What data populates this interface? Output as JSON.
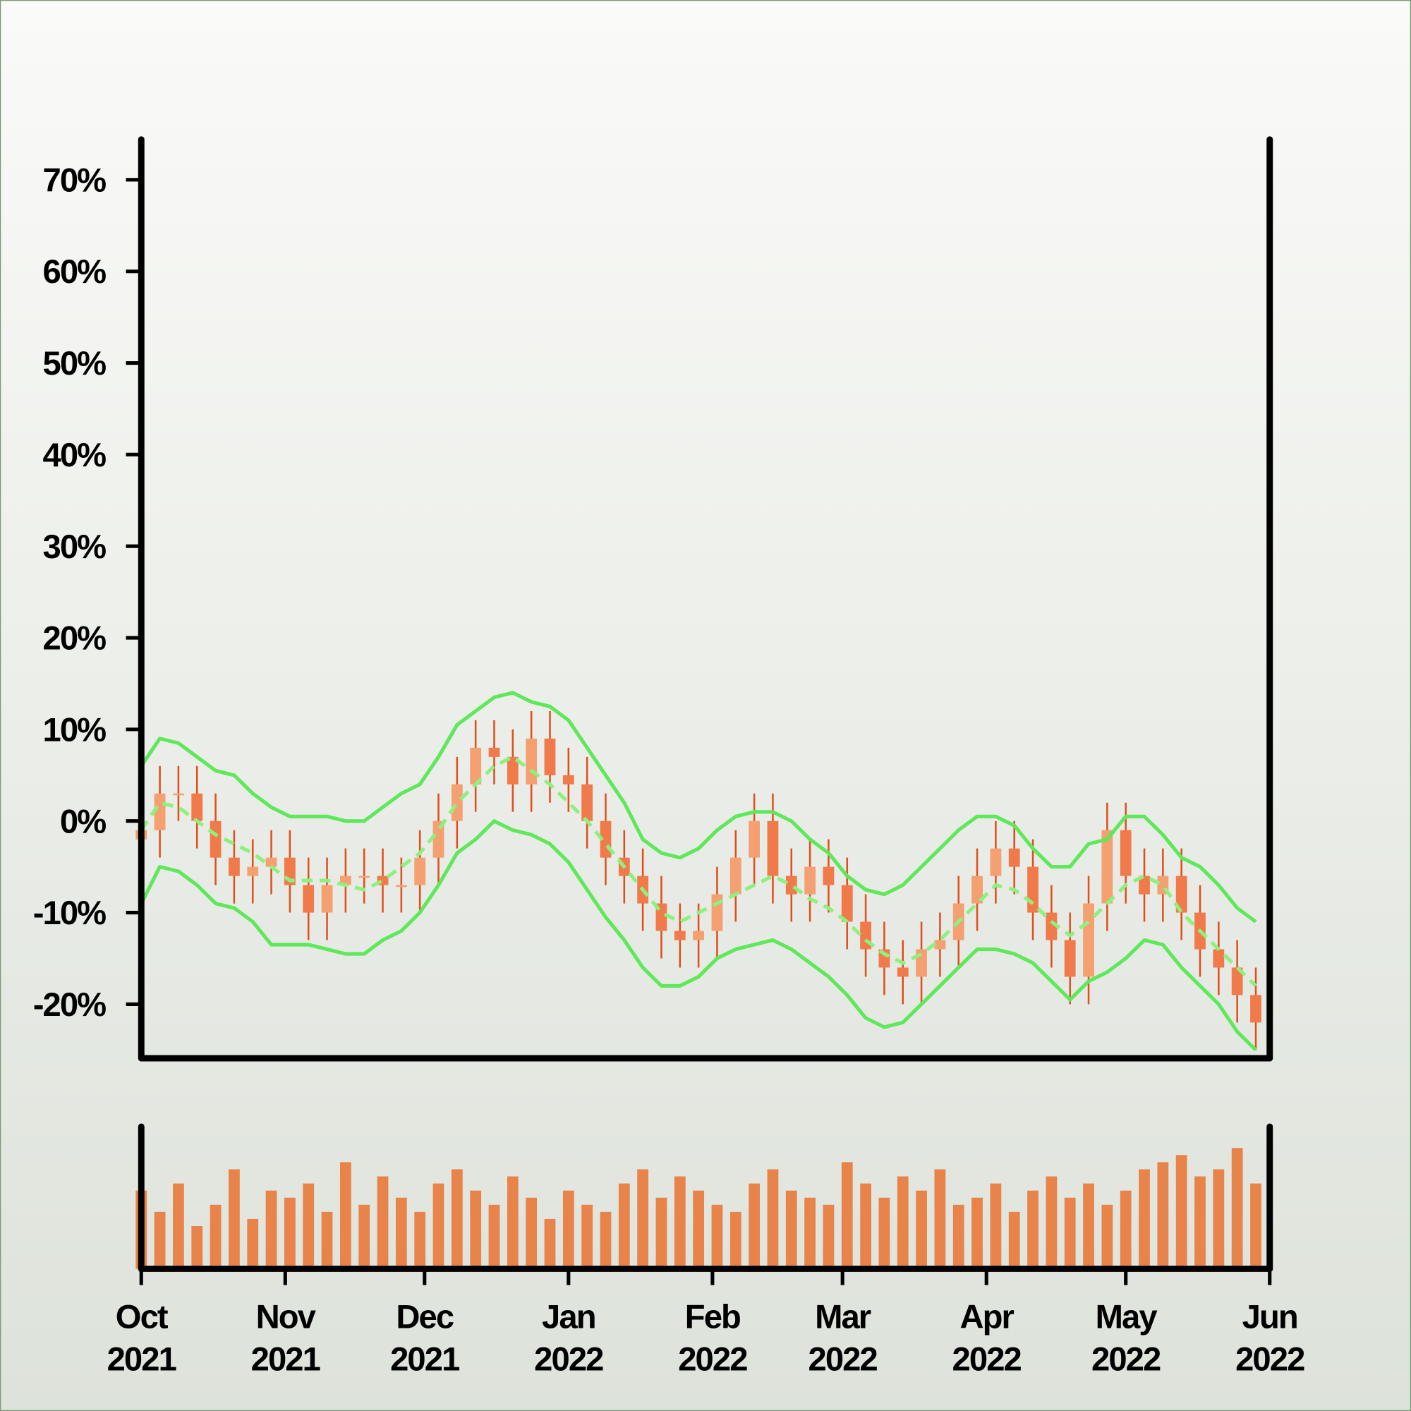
{
  "chart_data": {
    "type": "candlestick",
    "x": [
      "2021-10-01",
      "2021-10-05",
      "2021-10-09",
      "2021-10-13",
      "2021-10-17",
      "2021-10-21",
      "2021-10-25",
      "2021-10-29",
      "2021-11-02",
      "2021-11-06",
      "2021-11-10",
      "2021-11-14",
      "2021-11-18",
      "2021-11-22",
      "2021-11-26",
      "2021-11-30",
      "2021-12-04",
      "2021-12-08",
      "2021-12-12",
      "2021-12-16",
      "2021-12-20",
      "2021-12-24",
      "2021-12-28",
      "2022-01-01",
      "2022-01-05",
      "2022-01-09",
      "2022-01-13",
      "2022-01-17",
      "2022-01-21",
      "2022-01-25",
      "2022-01-29",
      "2022-02-02",
      "2022-02-06",
      "2022-02-10",
      "2022-02-14",
      "2022-02-18",
      "2022-02-22",
      "2022-02-26",
      "2022-03-02",
      "2022-03-06",
      "2022-03-10",
      "2022-03-14",
      "2022-03-18",
      "2022-03-22",
      "2022-03-26",
      "2022-03-30",
      "2022-04-03",
      "2022-04-07",
      "2022-04-11",
      "2022-04-15",
      "2022-04-19",
      "2022-04-23",
      "2022-04-27",
      "2022-05-01",
      "2022-05-05",
      "2022-05-09",
      "2022-05-13",
      "2022-05-17",
      "2022-05-21",
      "2022-05-25",
      "2022-05-29"
    ],
    "open": [
      -2,
      -1,
      3,
      3,
      0,
      -4,
      -6,
      -5,
      -4,
      -7,
      -10,
      -7,
      -6,
      -6,
      -7,
      -7,
      -4,
      0,
      4,
      8,
      7,
      4,
      9,
      5,
      4,
      0,
      -4,
      -6,
      -9,
      -12,
      -13,
      -12,
      -8,
      -4,
      0,
      -6,
      -8,
      -5,
      -7,
      -11,
      -14,
      -16,
      -17,
      -14,
      -13,
      -9,
      -6,
      -3,
      -5,
      -10,
      -13,
      -17,
      -9,
      -1,
      -6,
      -8,
      -6,
      -10,
      -14,
      -16,
      -19
    ],
    "high": [
      2,
      6,
      6,
      6,
      3,
      -1,
      -2,
      -1,
      -1,
      -4,
      -4,
      -3,
      -3,
      -3,
      -4,
      -1,
      3,
      7,
      11,
      11,
      10,
      12,
      12,
      8,
      7,
      3,
      -1,
      -3,
      -6,
      -9,
      -9,
      -5,
      -1,
      3,
      3,
      -3,
      -2,
      -2,
      -4,
      -8,
      -11,
      -13,
      -11,
      -10,
      -6,
      -3,
      0,
      0,
      -2,
      -7,
      -10,
      -6,
      2,
      2,
      -3,
      -3,
      -3,
      -7,
      -11,
      -13,
      -16
    ],
    "low": [
      -5,
      -4,
      0,
      -3,
      -7,
      -9,
      -9,
      -8,
      -10,
      -13,
      -13,
      -10,
      -9,
      -10,
      -10,
      -10,
      -7,
      -3,
      1,
      4,
      1,
      1,
      2,
      1,
      -3,
      -7,
      -9,
      -12,
      -15,
      -16,
      -16,
      -15,
      -11,
      -7,
      -9,
      -11,
      -11,
      -10,
      -14,
      -17,
      -19,
      -20,
      -20,
      -17,
      -16,
      -12,
      -9,
      -8,
      -13,
      -16,
      -20,
      -20,
      -12,
      -9,
      -11,
      -11,
      -13,
      -17,
      -19,
      -22,
      -25
    ],
    "close": [
      -1,
      3,
      3,
      0,
      -4,
      -6,
      -5,
      -4,
      -7,
      -10,
      -7,
      -6,
      -6,
      -7,
      -7,
      -4,
      0,
      4,
      8,
      7,
      4,
      9,
      5,
      4,
      0,
      -4,
      -6,
      -9,
      -12,
      -13,
      -12,
      -8,
      -4,
      0,
      -6,
      -8,
      -5,
      -7,
      -11,
      -14,
      -16,
      -17,
      -14,
      -13,
      -9,
      -6,
      -3,
      -5,
      -10,
      -13,
      -17,
      -9,
      -1,
      -6,
      -8,
      -6,
      -10,
      -14,
      -16,
      -19,
      -22
    ],
    "up_color": "#f4a070",
    "down_color": "#f07a4a",
    "wick_color": "#e0501c",
    "bands": {
      "color": "#5ee85a",
      "middle_color": "#8ef07e",
      "upper": [
        6,
        9,
        8.5,
        7,
        5.5,
        5,
        3,
        1.5,
        0.5,
        0.5,
        0.5,
        0,
        0,
        1.5,
        3,
        4,
        7,
        10.5,
        12,
        13.5,
        14,
        13,
        12.5,
        11,
        8,
        5,
        2,
        -2,
        -3.5,
        -4,
        -3,
        -1,
        0.5,
        1,
        1,
        0,
        -2,
        -3.5,
        -6,
        -7.5,
        -8,
        -7,
        -5,
        -3,
        -1,
        0.5,
        0.5,
        -0.5,
        -3,
        -5,
        -5,
        -2.5,
        -2,
        0.5,
        0.5,
        -1.5,
        -4,
        -5,
        -7,
        -9.5,
        -11
      ],
      "middle": [
        -1,
        2,
        1.5,
        0,
        -1.5,
        -2.5,
        -3.5,
        -5,
        -6.5,
        -6.5,
        -6.5,
        -7,
        -7.5,
        -6.5,
        -5,
        -3.5,
        -1,
        2,
        4,
        6,
        7,
        5.5,
        4,
        2,
        0,
        -2.5,
        -5,
        -7.5,
        -10,
        -11,
        -10,
        -9,
        -8,
        -7,
        -6,
        -7,
        -8.5,
        -9.5,
        -11,
        -13,
        -14.5,
        -15.5,
        -14.5,
        -13,
        -11,
        -9,
        -7,
        -7.5,
        -9,
        -11,
        -12.5,
        -11,
        -9,
        -7,
        -6,
        -7,
        -10,
        -12,
        -14,
        -16,
        -18
      ],
      "lower": [
        -9,
        -5,
        -5.5,
        -7,
        -9,
        -9.5,
        -11,
        -13.5,
        -13.5,
        -13.5,
        -14,
        -14.5,
        -14.5,
        -13,
        -12,
        -10,
        -7,
        -3.5,
        -2,
        0,
        -1,
        -1.5,
        -2.5,
        -4.5,
        -7.5,
        -10.5,
        -13,
        -16,
        -18,
        -18,
        -17,
        -15,
        -14,
        -13.5,
        -13,
        -14,
        -15.5,
        -17,
        -19,
        -21.5,
        -22.5,
        -22,
        -20,
        -18,
        -16,
        -14,
        -14,
        -14.5,
        -15.5,
        -17.5,
        -19.5,
        -17.5,
        -16.5,
        -15,
        -13,
        -13.5,
        -16,
        -18,
        -20,
        -23,
        -25
      ]
    },
    "volume": {
      "color": "#e8844a",
      "ylim": [
        0,
        100
      ],
      "values": [
        55,
        40,
        60,
        30,
        45,
        70,
        35,
        55,
        50,
        60,
        40,
        75,
        45,
        65,
        50,
        40,
        60,
        70,
        55,
        45,
        65,
        50,
        35,
        55,
        45,
        40,
        60,
        70,
        50,
        65,
        55,
        45,
        40,
        60,
        70,
        55,
        50,
        45,
        75,
        60,
        50,
        65,
        55,
        70,
        45,
        50,
        60,
        40,
        55,
        65,
        50,
        60,
        45,
        55,
        70,
        75,
        80,
        65,
        70,
        85,
        60
      ]
    },
    "xlim": [
      "2021-10-01",
      "2022-06-01"
    ],
    "xticks": [
      {
        "value": "2021-10-01",
        "label": "Oct 2021"
      },
      {
        "value": "2021-11-01",
        "label": "Nov 2021"
      },
      {
        "value": "2021-12-01",
        "label": "Dec 2021"
      },
      {
        "value": "2022-01-01",
        "label": "Jan 2022"
      },
      {
        "value": "2022-02-01",
        "label": "Feb 2022"
      },
      {
        "value": "2022-03-01",
        "label": "Mar 2022"
      },
      {
        "value": "2022-04-01",
        "label": "Apr 2022"
      },
      {
        "value": "2022-05-01",
        "label": "May 2022"
      },
      {
        "value": "2022-06-01",
        "label": "Jun 2022"
      }
    ],
    "ylim": [
      -25.9,
      74.4
    ],
    "yticks": [
      {
        "value": -20,
        "label": "-20%"
      },
      {
        "value": -10,
        "label": "-10%"
      },
      {
        "value": 0,
        "label": "0%"
      },
      {
        "value": 10,
        "label": "10%"
      },
      {
        "value": 20,
        "label": "20%"
      },
      {
        "value": 30,
        "label": "30%"
      },
      {
        "value": 40,
        "label": "40%"
      },
      {
        "value": 50,
        "label": "50%"
      },
      {
        "value": 60,
        "label": "60%"
      },
      {
        "value": 70,
        "label": "70%"
      }
    ]
  }
}
